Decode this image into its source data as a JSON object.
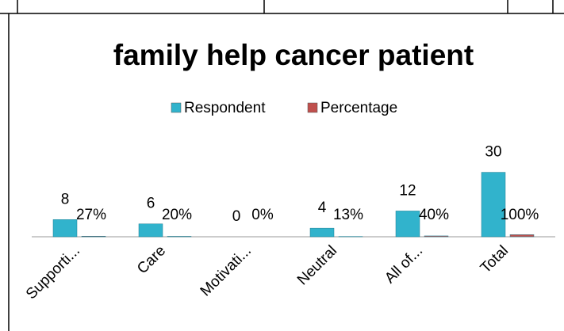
{
  "chart_data": {
    "type": "bar",
    "title": "family help cancer patient",
    "categories": [
      "Supporti...",
      "Care",
      "Motivati...",
      "Neutral",
      "All of...",
      "Total"
    ],
    "series": [
      {
        "name": "Respondent",
        "color": "#31b3cc",
        "values": [
          8,
          6,
          0,
          4,
          12,
          30
        ]
      },
      {
        "name": "Percentage",
        "color": "#c0504d",
        "values": [
          0.27,
          0.2,
          0,
          0.13,
          0.4,
          1
        ],
        "value_labels": [
          "27%",
          "20%",
          "0%",
          "13%",
          "40%",
          "100%"
        ]
      }
    ],
    "ylim": [
      0,
      35
    ],
    "legend": "top"
  }
}
